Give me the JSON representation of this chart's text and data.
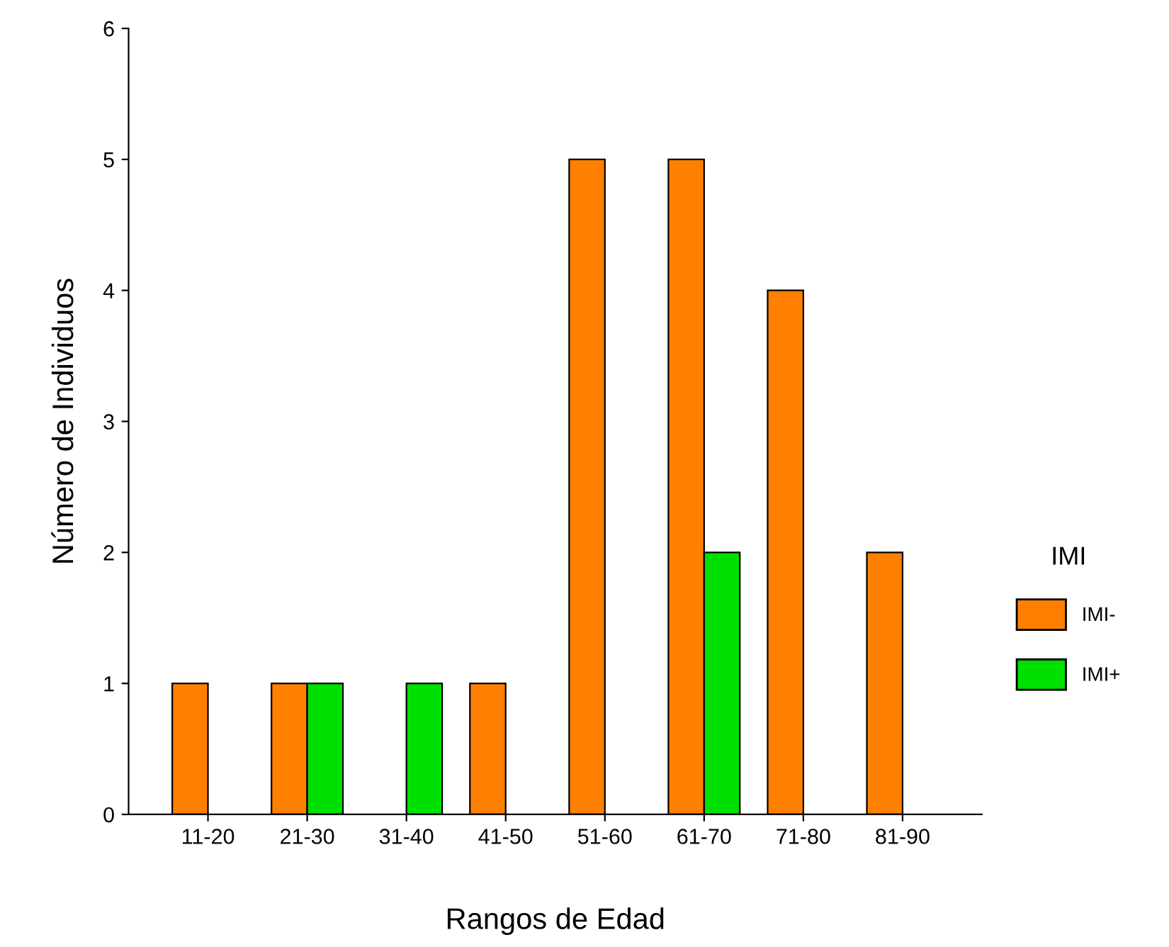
{
  "chart_data": {
    "type": "bar",
    "xlabel": "Rangos de Edad",
    "ylabel": "Número de Individuos",
    "legend_title": "IMI",
    "categories": [
      "11-20",
      "21-30",
      "31-40",
      "41-50",
      "51-60",
      "61-70",
      "71-80",
      "81-90"
    ],
    "series": [
      {
        "name": "IMI-",
        "color": "#ff8000",
        "values": [
          1,
          1,
          null,
          1,
          5,
          5,
          4,
          2
        ]
      },
      {
        "name": "IMI+",
        "color": "#00e000",
        "values": [
          null,
          1,
          1,
          null,
          null,
          2,
          null,
          null
        ]
      }
    ],
    "ylim": [
      0,
      6
    ],
    "yticks": [
      0,
      1,
      2,
      3,
      4,
      5,
      6
    ],
    "grid": false,
    "legend": "right"
  }
}
